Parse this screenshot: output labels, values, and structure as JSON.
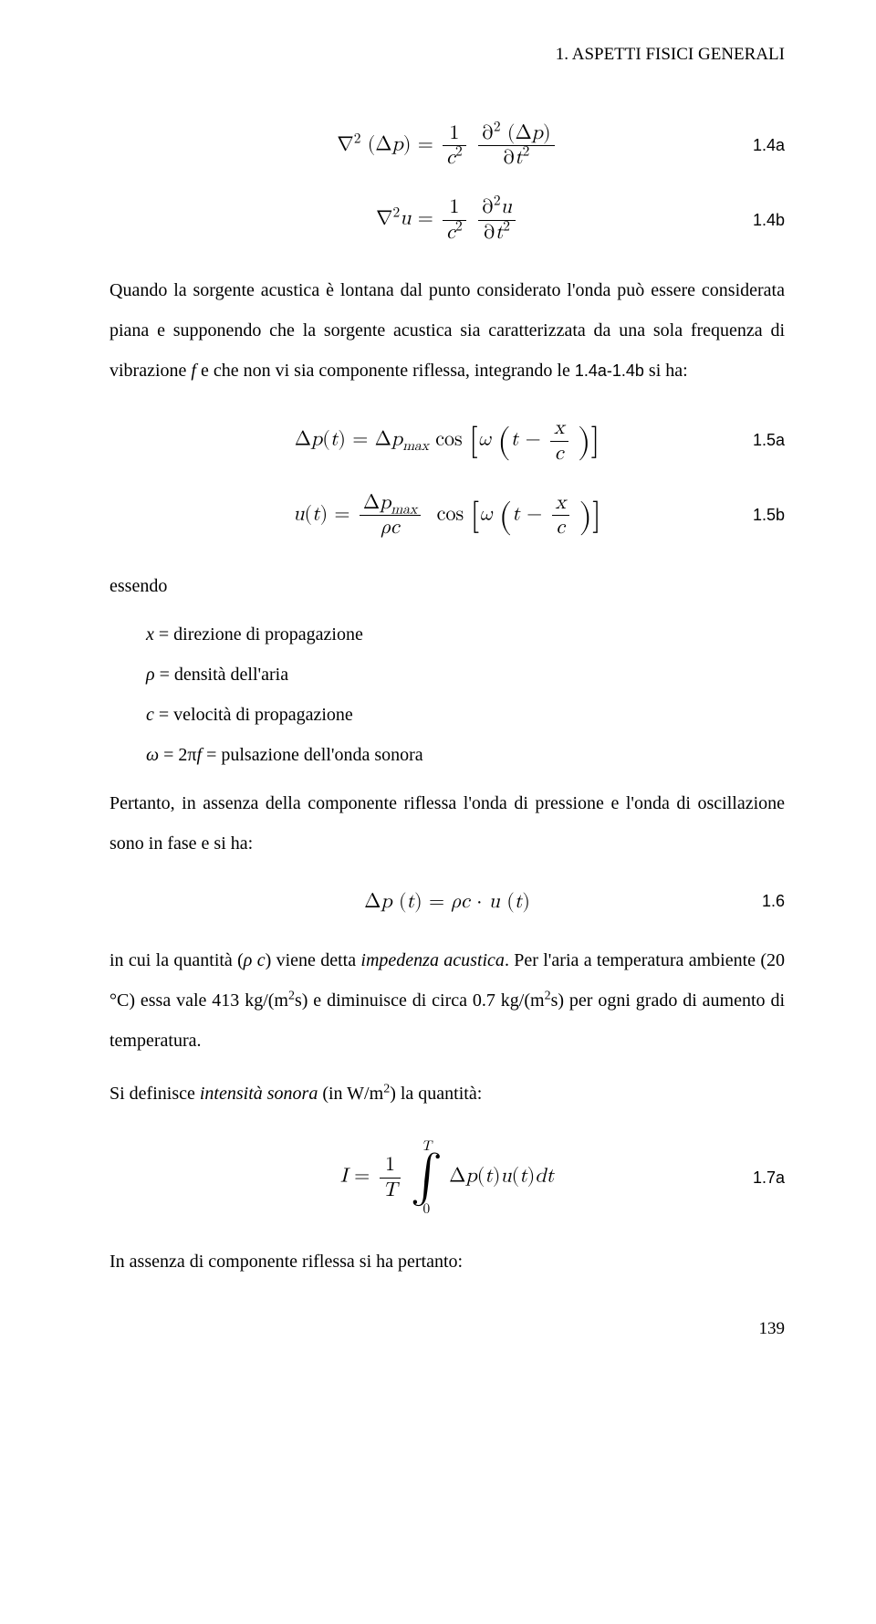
{
  "header": "1.   ASPETTI FISICI GENERALI",
  "eq14a": {
    "label": "1.4a"
  },
  "eq14b": {
    "label": "1.4b"
  },
  "para1_a": "Quando la sorgente acustica è lontana dal punto considerato l'onda può essere considerata piana e supponendo che la sorgente acustica sia caratterizzata da una sola frequenza di vibrazione ",
  "para1_f": "f",
  "para1_b": " e che non vi sia componente riflessa, integrando le ",
  "para1_ref": "1.4a-1.4b",
  "para1_c": " si ha:",
  "eq15a": {
    "label": "1.5a"
  },
  "eq15b": {
    "label": "1.5b"
  },
  "essendo": "essendo",
  "defs": {
    "x": "x",
    "x_desc": " = direzione di propagazione",
    "rho": "ρ",
    "rho_desc": " = densità dell'aria",
    "c": "c",
    "c_desc": " = velocità di propagazione",
    "omega": "ω",
    "eq": " = 2π",
    "f": "f",
    "omega_desc": " = pulsazione dell'onda sonora"
  },
  "para2": "Pertanto, in assenza della componente riflessa l'onda di pressione e l'onda di oscillazione sono in fase e si ha:",
  "eq16": {
    "label": "1.6"
  },
  "para3_a": "in cui la quantità (",
  "para3_rho_c": "ρ c",
  "para3_b": ") viene detta ",
  "para3_imp": "impedenza acustica",
  "para3_c": ". Per l'aria a temperatura ambiente (20 °C) essa vale 413 kg/(m",
  "para3_d": "s) e diminuisce di circa 0.7 kg/(m",
  "para3_e": "s) per ogni grado di aumento di temperatura.",
  "para4_a": "Si definisce ",
  "para4_int": "intensità sonora",
  "para4_b": " (in W/m",
  "para4_c": ") la quantità:",
  "eq17a": {
    "label": "1.7a"
  },
  "closing": "In assenza di componente riflessa si ha pertanto:",
  "pagenum": "139",
  "colors": {
    "text": "#000000",
    "bg": "#ffffff"
  }
}
